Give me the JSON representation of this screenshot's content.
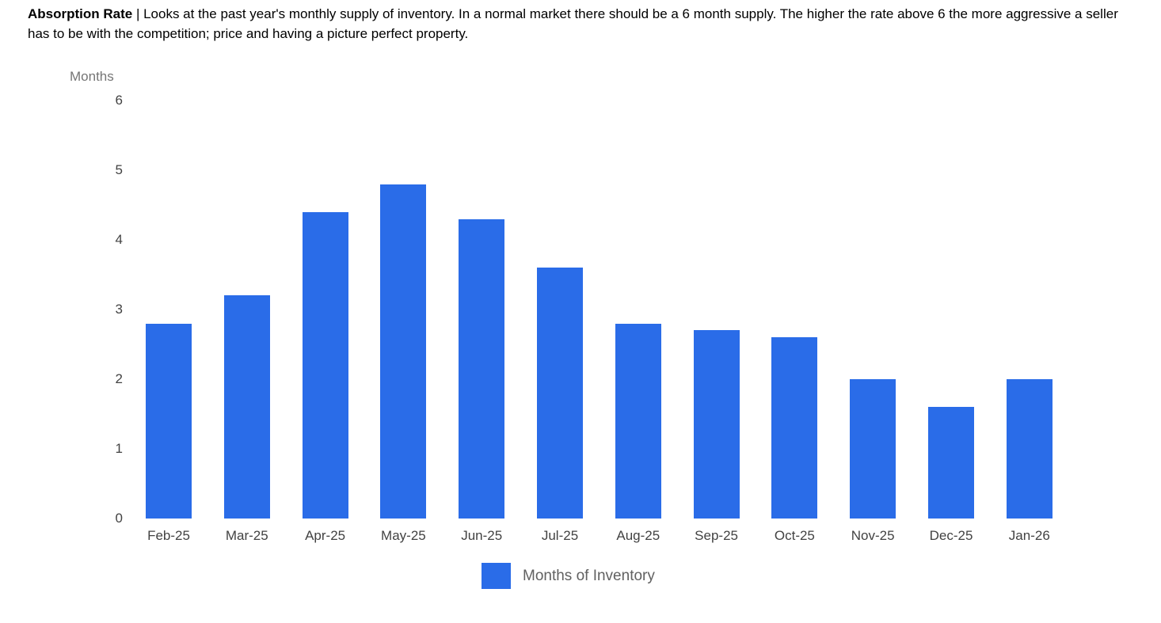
{
  "header": {
    "title_bold": "Absorption Rate",
    "description": " | Looks at the past year's monthly supply of inventory. In a normal market there should be a 6 month supply. The higher the rate above 6 the more aggressive a seller has to be with the competition; price and having a picture perfect property."
  },
  "chart_data": {
    "type": "bar",
    "title": "Absorption Rate",
    "ylabel": "Months",
    "xlabel": "",
    "categories": [
      "Feb-25",
      "Mar-25",
      "Apr-25",
      "May-25",
      "Jun-25",
      "Jul-25",
      "Aug-25",
      "Sep-25",
      "Oct-25",
      "Nov-25",
      "Dec-25",
      "Jan-26"
    ],
    "values": [
      2.8,
      3.2,
      4.4,
      4.8,
      4.3,
      3.6,
      2.8,
      2.7,
      2.6,
      2.0,
      1.6,
      2.0
    ],
    "ylim": [
      0,
      6
    ],
    "yticks": [
      0,
      1,
      2,
      3,
      4,
      5,
      6
    ],
    "legend": "Months of Inventory",
    "legend_position": "bottom",
    "grid": false,
    "bar_color": "#2a6ce8"
  }
}
